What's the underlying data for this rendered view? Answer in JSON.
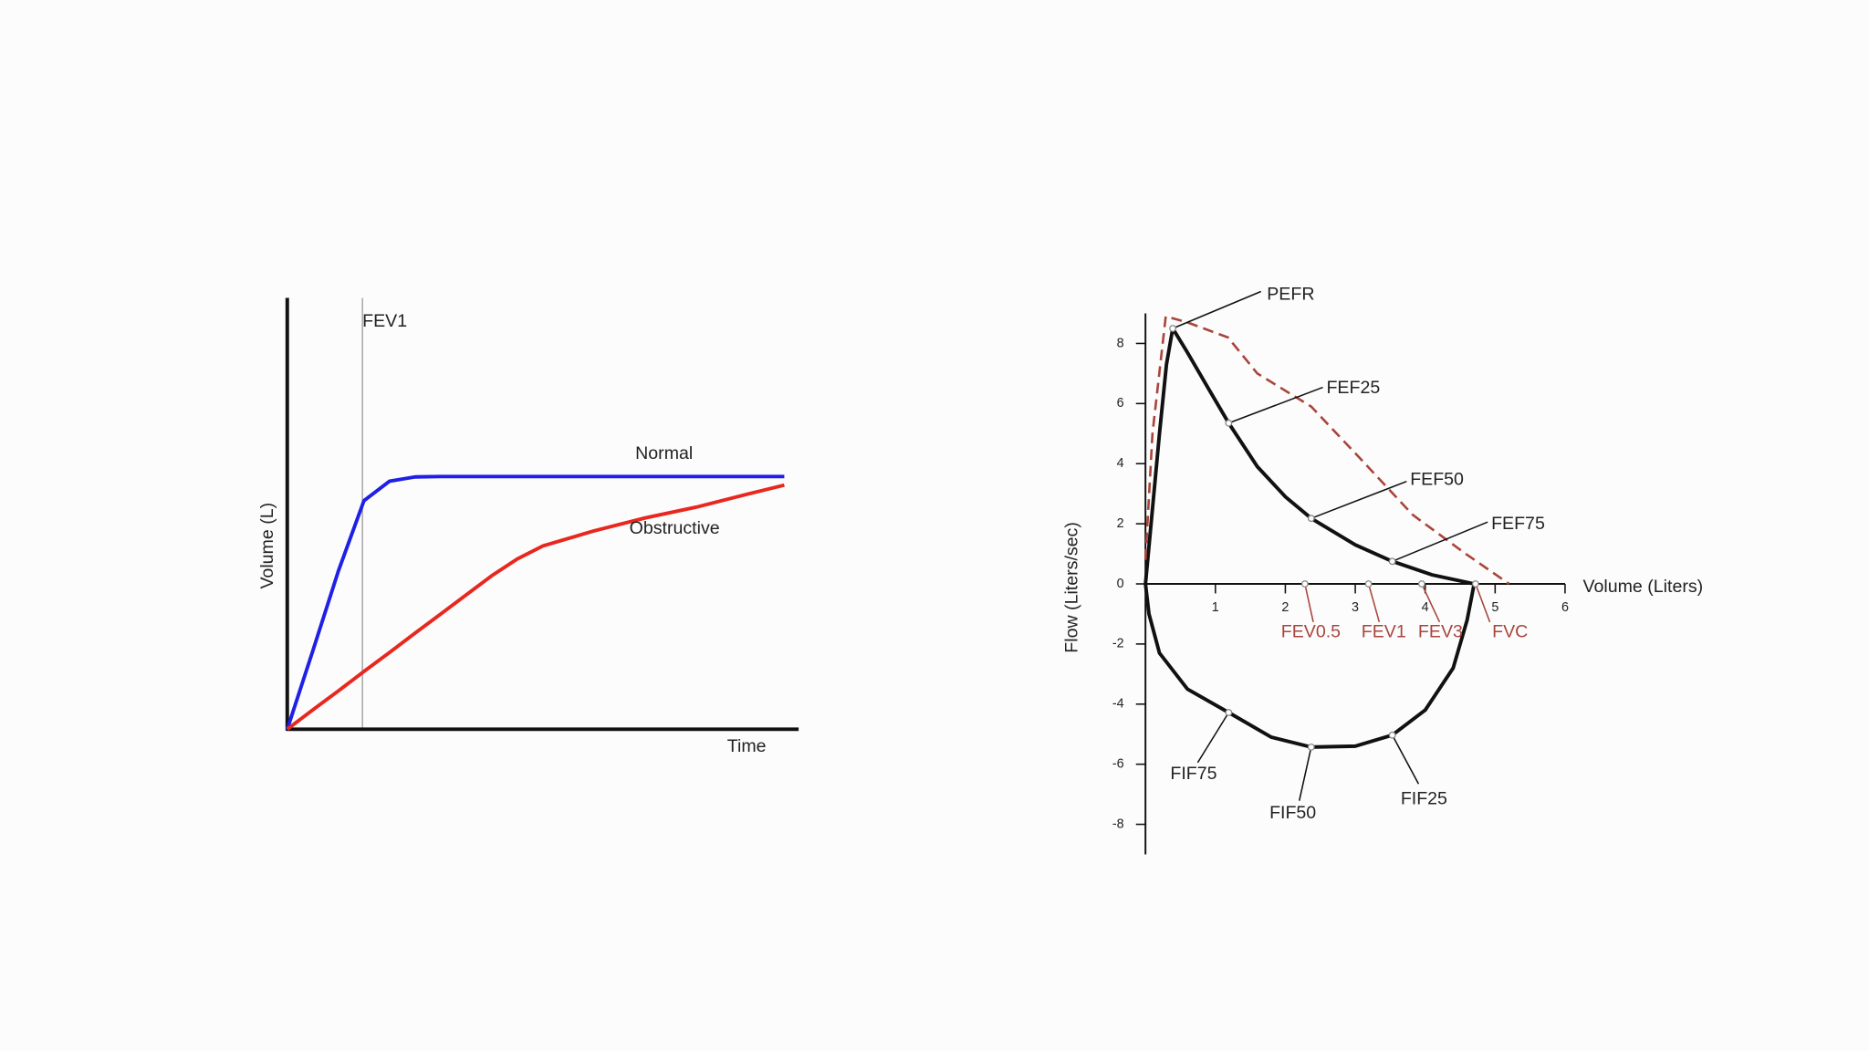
{
  "chart_data": [
    {
      "type": "line",
      "ylabel": "Volume (L)",
      "xlabel": "Time",
      "xlim": [
        0,
        10
      ],
      "ylim": [
        0,
        10
      ],
      "x": [
        0,
        0.5,
        1,
        1.5,
        2,
        2.5,
        3,
        4,
        4.5,
        5,
        6,
        7,
        8,
        9,
        9.72
      ],
      "series": [
        {
          "name": "Normal",
          "color": "#1f1fe6",
          "values": [
            0,
            1.82,
            3.67,
            5.3,
            5.75,
            5.85,
            5.86,
            5.86,
            5.86,
            5.86,
            5.86,
            5.86,
            5.86,
            5.86,
            5.86
          ]
        },
        {
          "name": "Obstructive",
          "color": "#e8281e",
          "values": [
            0,
            0.45,
            0.89,
            1.34,
            1.78,
            2.23,
            2.67,
            3.56,
            3.95,
            4.25,
            4.6,
            4.9,
            5.15,
            5.45,
            5.66
          ]
        }
      ],
      "annotations": [
        {
          "label": "FEV1",
          "x": 1.47
        }
      ]
    },
    {
      "type": "line",
      "xlabel": "Volume (Liters)",
      "ylabel": "Flow (Liters/sec)",
      "xlim": [
        0,
        6
      ],
      "ylim": [
        -9,
        9
      ],
      "xticks": [
        1,
        2,
        3,
        4,
        5,
        6
      ],
      "yticks": [
        -8,
        -6,
        -4,
        -2,
        0,
        2,
        4,
        6,
        8
      ],
      "series": [
        {
          "color": "#111111",
          "x": [
            0,
            0.1,
            0.2,
            0.3,
            0.39,
            0.6,
            0.9,
            1.19,
            1.6,
            2,
            2.37,
            3,
            3.53,
            4.1,
            4.7
          ],
          "values": [
            0,
            2.5,
            5,
            7.3,
            8.5,
            7.7,
            6.5,
            5.35,
            3.9,
            2.9,
            2.18,
            1.3,
            0.75,
            0.3,
            0
          ]
        },
        {
          "color": "#111111",
          "x": [
            0,
            0.05,
            0.2,
            0.6,
            1.19,
            1.8,
            2.37,
            3,
            3.53,
            4,
            4.4,
            4.6,
            4.7
          ],
          "values": [
            0,
            -1,
            -2.3,
            -3.5,
            -4.28,
            -5.1,
            -5.43,
            -5.4,
            -5.03,
            -4.2,
            -2.8,
            -1.2,
            0
          ]
        },
        {
          "color": "#a9453a",
          "dashed": true,
          "x": [
            0,
            0.1,
            0.29,
            0.6,
            1.18,
            1.6,
            2.37,
            3.1,
            3.82,
            4.58,
            5.2
          ],
          "values": [
            0.8,
            5,
            8.9,
            8.7,
            8.2,
            7,
            5.9,
            4.1,
            2.3,
            1,
            0
          ]
        }
      ],
      "annotations": [
        {
          "label": "PEFR",
          "x": 0.39,
          "y": 8.5
        },
        {
          "label": "FEF25",
          "x": 1.19,
          "y": 5.35
        },
        {
          "label": "FEF50",
          "x": 2.37,
          "y": 2.18
        },
        {
          "label": "FEF75",
          "x": 3.53,
          "y": 0.75
        },
        {
          "label": "FIF75",
          "x": 1.19,
          "y": -4.28
        },
        {
          "label": "FIF50",
          "x": 2.37,
          "y": -5.43
        },
        {
          "label": "FIF25",
          "x": 3.53,
          "y": -5.03
        }
      ],
      "volume_markers": {
        "color": "#a9453a",
        "items": [
          {
            "label": "FEV0.5",
            "x": 2.28
          },
          {
            "label": "FEV1",
            "x": 3.19
          },
          {
            "label": "FEV3",
            "x": 3.95
          },
          {
            "label": "FVC",
            "x": 4.72
          }
        ]
      }
    }
  ]
}
